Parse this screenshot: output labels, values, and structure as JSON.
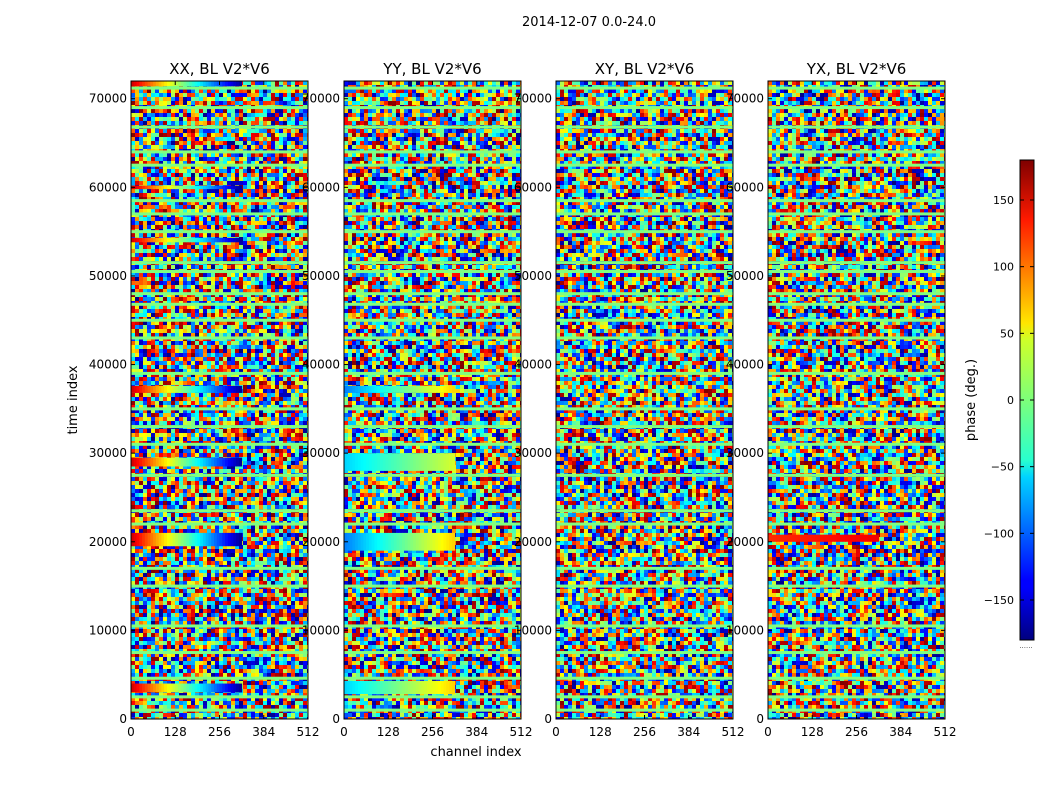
{
  "figure": {
    "suptitle": "2014-12-07 0.0-24.0",
    "ylabel": "time index",
    "xlabel": "channel index"
  },
  "colorbar": {
    "label": "phase (deg.)",
    "ticks": [
      150,
      100,
      50,
      0,
      -50,
      -100,
      -150
    ],
    "range": [
      -180,
      180
    ],
    "colormap": "jet",
    "footer_text": "......"
  },
  "chart_data": [
    {
      "type": "heatmap",
      "title": "XX, BL V2*V6",
      "xlabel": "",
      "ylabel": "time index",
      "xlim": [
        0,
        512
      ],
      "ylim": [
        0,
        72000
      ],
      "x_ticks": [
        0,
        128,
        256,
        384,
        512
      ],
      "y_ticks": [
        0,
        10000,
        20000,
        30000,
        40000,
        50000,
        60000,
        70000
      ],
      "clim": [
        -180,
        180
      ],
      "colormap": "jet",
      "note": "phase vs time and channel; mostly random noise with coherent horizontal bands",
      "coherent_bands": [
        {
          "time": [
            3000,
            4000
          ],
          "channels": [
            0,
            320
          ],
          "phase_start": 150,
          "phase_end": -170
        },
        {
          "time": [
            19500,
            21000
          ],
          "channels": [
            0,
            320
          ],
          "phase_start": 150,
          "phase_end": -170
        },
        {
          "time": [
            28500,
            29500
          ],
          "channels": [
            0,
            320
          ],
          "phase_start": 150,
          "phase_end": -170
        },
        {
          "time": [
            36800,
            37600
          ],
          "channels": [
            0,
            320
          ],
          "phase_start": 150,
          "phase_end": -170
        },
        {
          "time": [
            53800,
            54300
          ],
          "channels": [
            0,
            320
          ],
          "phase_start": 150,
          "phase_end": -170
        },
        {
          "time": [
            59800,
            60200
          ],
          "channels": [
            0,
            320
          ],
          "phase_start": 150,
          "phase_end": -170
        },
        {
          "time": [
            71400,
            72000
          ],
          "channels": [
            0,
            320
          ],
          "phase_start": 150,
          "phase_end": -170
        }
      ]
    },
    {
      "type": "heatmap",
      "title": "YY, BL V2*V6",
      "xlabel": "channel index",
      "xlim": [
        0,
        512
      ],
      "ylim": [
        0,
        72000
      ],
      "x_ticks": [
        0,
        128,
        256,
        384,
        512
      ],
      "y_ticks": [
        0,
        10000,
        20000,
        30000,
        40000,
        50000,
        60000,
        70000
      ],
      "clim": [
        -180,
        180
      ],
      "colormap": "jet",
      "coherent_bands": [
        {
          "time": [
            2800,
            4300
          ],
          "channels": [
            0,
            320
          ],
          "phase_start": -60,
          "phase_end": 60
        },
        {
          "time": [
            19000,
            21000
          ],
          "channels": [
            0,
            320
          ],
          "phase_start": -90,
          "phase_end": 60
        },
        {
          "time": [
            28000,
            30000
          ],
          "channels": [
            0,
            320
          ],
          "phase_start": -60,
          "phase_end": 30
        },
        {
          "time": [
            36800,
            37600
          ],
          "channels": [
            0,
            320
          ],
          "phase_start": -90,
          "phase_end": 60
        }
      ]
    },
    {
      "type": "heatmap",
      "title": "XY, BL V2*V6",
      "xlim": [
        0,
        512
      ],
      "ylim": [
        0,
        72000
      ],
      "x_ticks": [
        0,
        128,
        256,
        384,
        512
      ],
      "y_ticks": [
        0,
        10000,
        20000,
        30000,
        40000,
        50000,
        60000,
        70000
      ],
      "clim": [
        -180,
        180
      ],
      "colormap": "jet",
      "coherent_bands": []
    },
    {
      "type": "heatmap",
      "title": "YX, BL V2*V6",
      "xlim": [
        0,
        512
      ],
      "ylim": [
        0,
        72000
      ],
      "x_ticks": [
        0,
        128,
        256,
        384,
        512
      ],
      "y_ticks": [
        0,
        10000,
        20000,
        30000,
        40000,
        50000,
        60000,
        70000
      ],
      "clim": [
        -180,
        180
      ],
      "colormap": "jet",
      "coherent_bands": [
        {
          "time": [
            20000,
            20800
          ],
          "channels": [
            0,
            320
          ],
          "phase_start": 120,
          "phase_end": 140
        }
      ]
    }
  ],
  "common_stripes": {
    "phase": 0,
    "time_centers": [
      1000,
      2500,
      4600,
      7500,
      10500,
      15000,
      17000,
      22000,
      23500,
      27500,
      31000,
      33000,
      35000,
      39000,
      43000,
      45000,
      46800,
      48000,
      50500,
      51500,
      55000,
      57000,
      58500,
      62500,
      64000,
      66800,
      69000,
      71200
    ]
  }
}
